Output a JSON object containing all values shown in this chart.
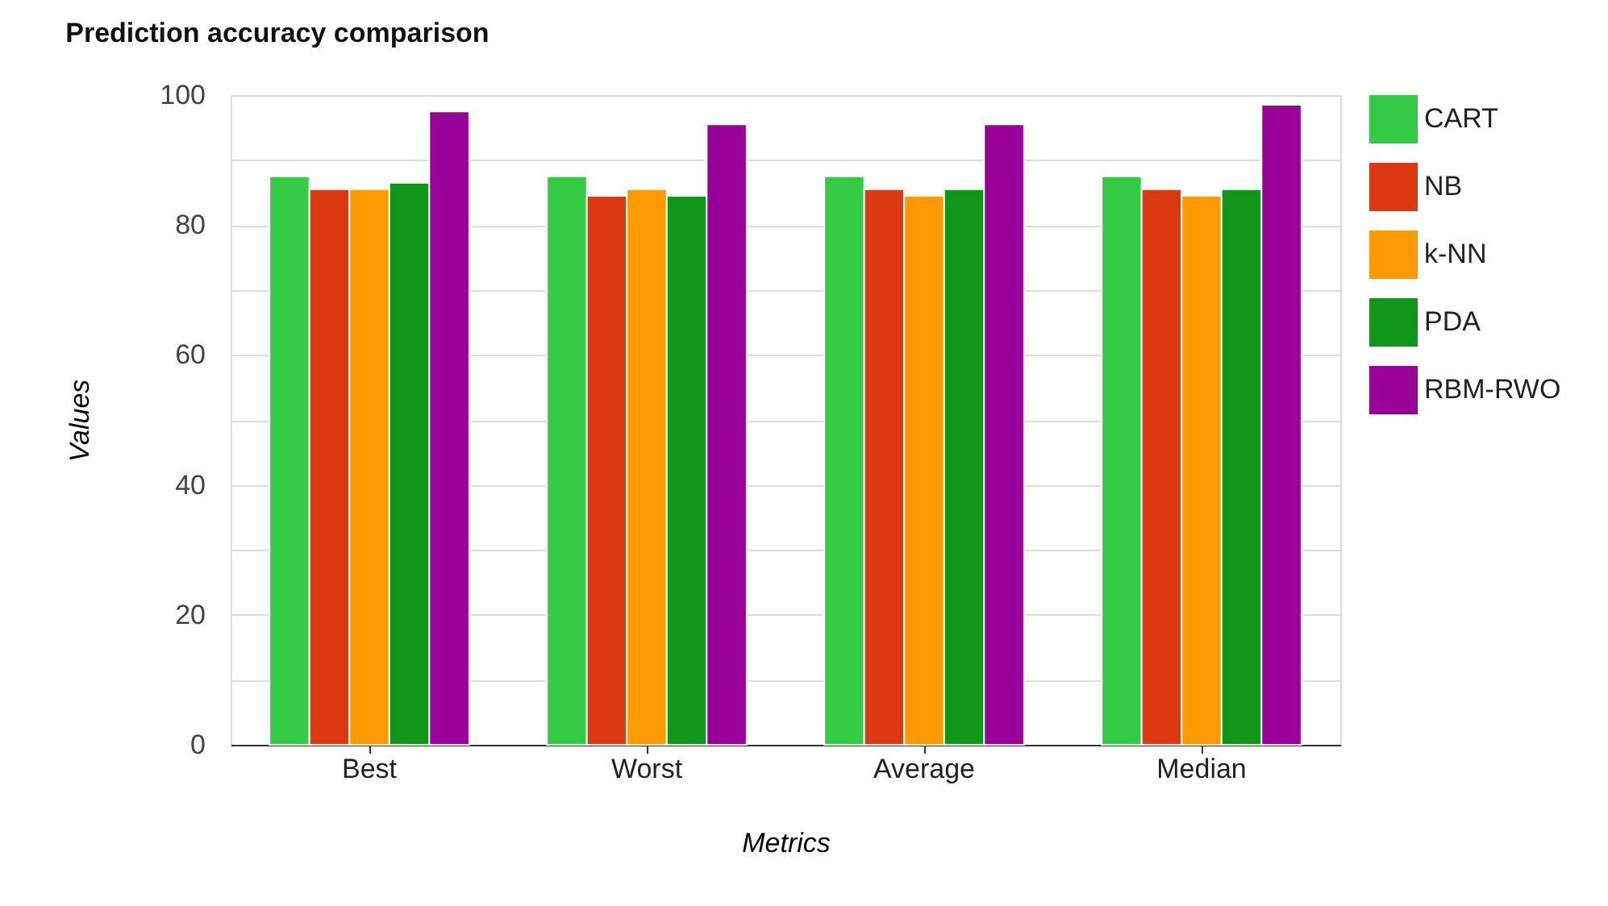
{
  "chart_data": {
    "type": "bar",
    "title": "Prediction accuracy comparison",
    "xlabel": "Metrics",
    "ylabel": "Values",
    "categories": [
      "Best",
      "Worst",
      "Average",
      "Median"
    ],
    "series": [
      {
        "name": "CART",
        "color": "#33cc44",
        "values": [
          87.5,
          87.5,
          87.5,
          87.5
        ]
      },
      {
        "name": "NB",
        "color": "#dc3912",
        "values": [
          85.5,
          84.5,
          85.5,
          85.5
        ]
      },
      {
        "name": "k-NN",
        "color": "#ff9900",
        "values": [
          85.5,
          85.5,
          84.5,
          84.5
        ]
      },
      {
        "name": "PDA",
        "color": "#109618",
        "values": [
          86.5,
          84.5,
          85.5,
          85.5
        ]
      },
      {
        "name": "RBM-RWO",
        "color": "#990099",
        "values": [
          97.5,
          95.5,
          95.5,
          98.5
        ]
      }
    ],
    "ylim": [
      0,
      100
    ],
    "yticks": [
      0,
      {
        "value": 10,
        "label": null
      },
      20,
      {
        "value": 30,
        "label": null
      },
      40,
      {
        "value": 50,
        "label": null
      },
      60,
      {
        "value": 70,
        "label": null
      },
      80,
      {
        "value": 90,
        "label": null
      },
      100
    ],
    "grid": "y",
    "legend": "top right"
  }
}
